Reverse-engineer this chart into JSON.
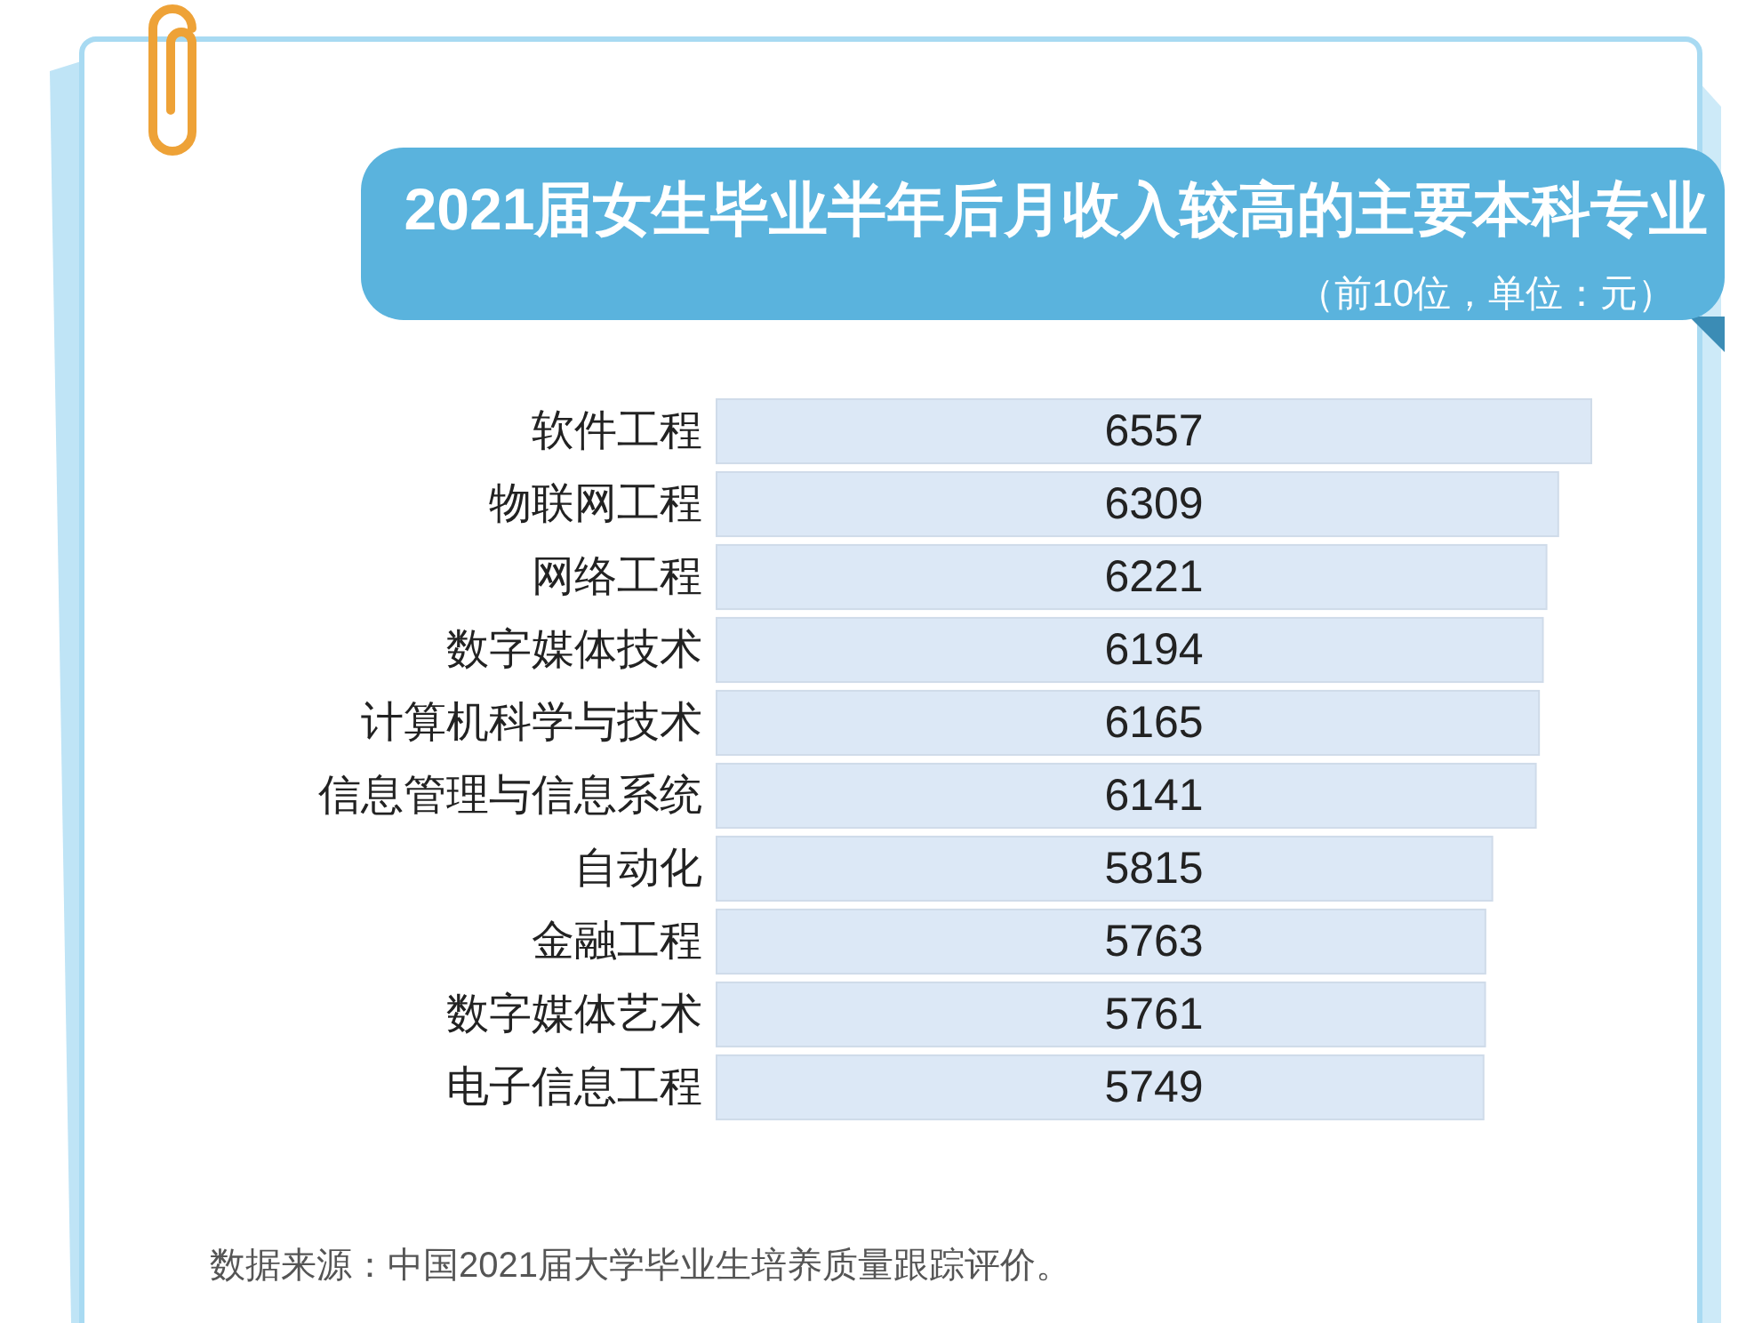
{
  "chart_data": {
    "type": "bar",
    "orientation": "horizontal",
    "title": "2021届女生毕业半年后月收入较高的主要本科专业",
    "subtitle": "（前10位，单位：元）",
    "categories": [
      "软件工程",
      "物联网工程",
      "网络工程",
      "数字媒体技术",
      "计算机科学与技术",
      "信息管理与信息系统",
      "自动化",
      "金融工程",
      "数字媒体艺术",
      "电子信息工程"
    ],
    "values": [
      6557,
      6309,
      6221,
      6194,
      6165,
      6141,
      5815,
      5763,
      5761,
      5749
    ],
    "color": "#dce8f6",
    "data_labels": true,
    "annotations": [
      "数据来源：中国2021届大学毕业生培养质量跟踪评价。"
    ]
  }
}
